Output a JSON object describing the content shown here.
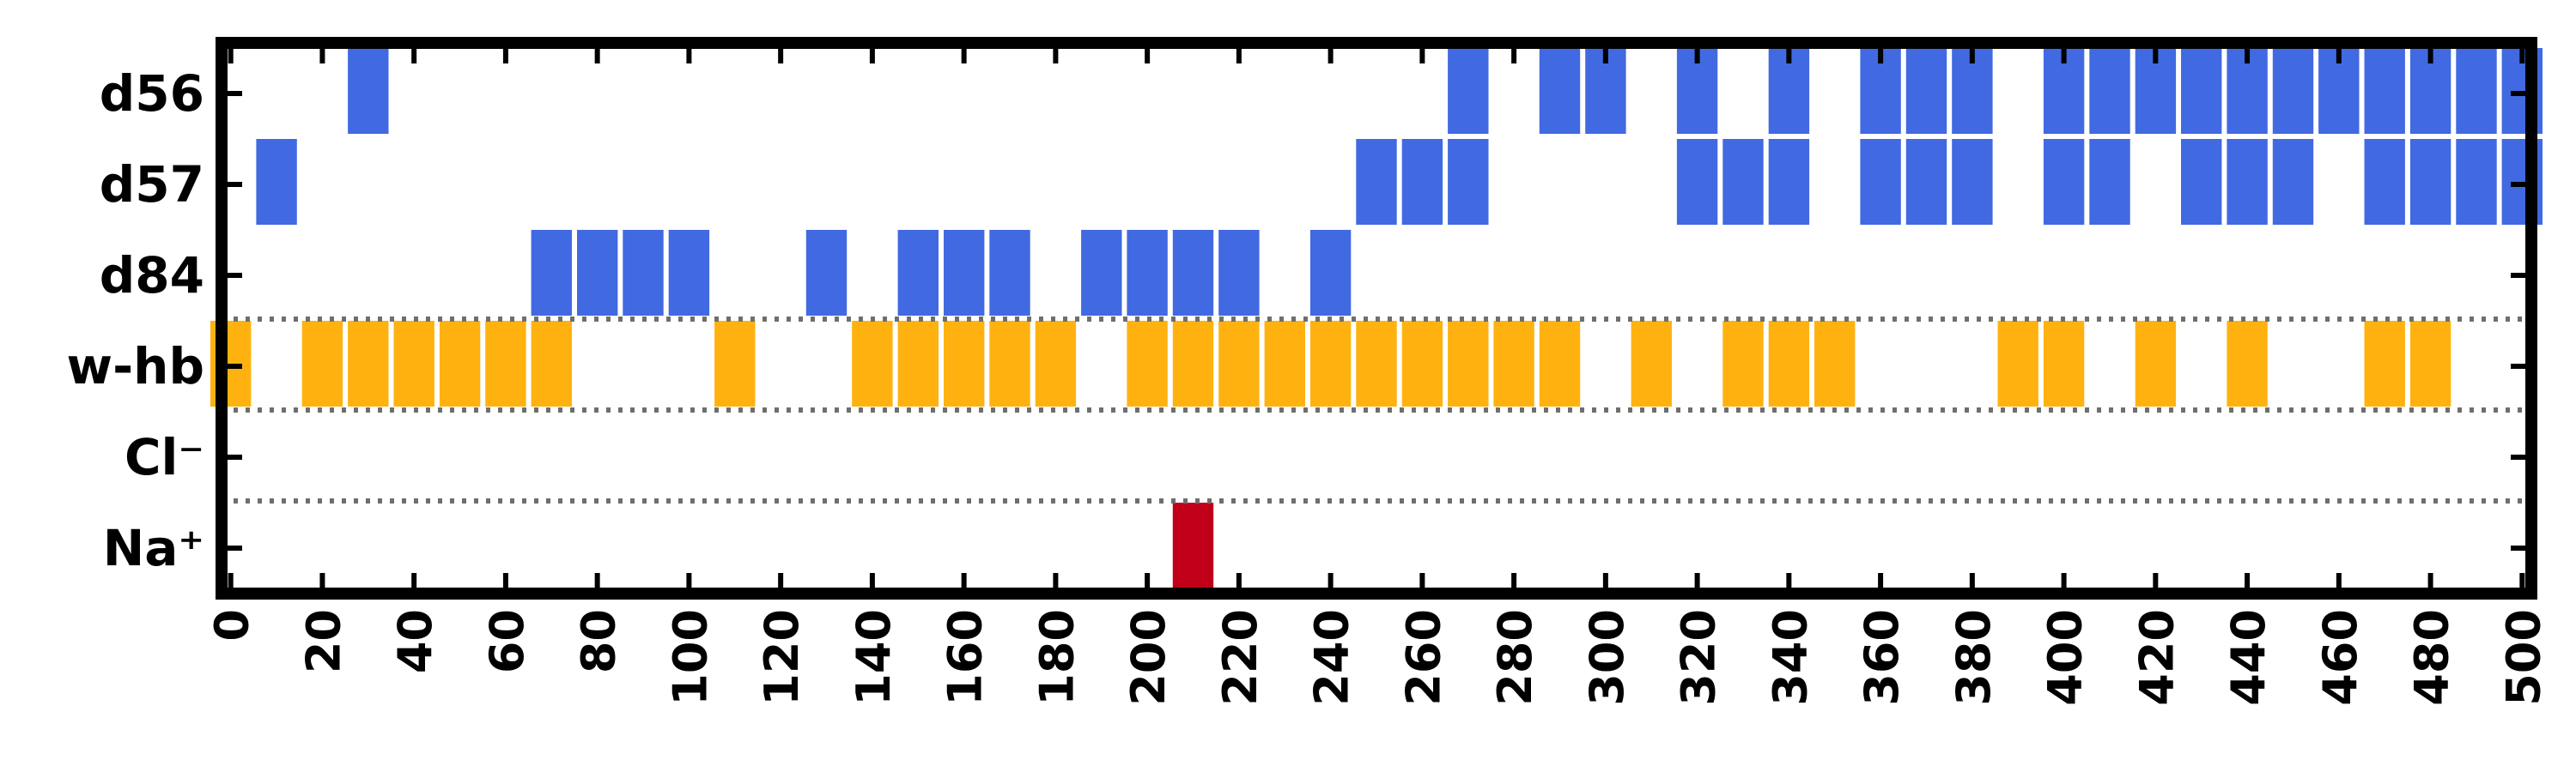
{
  "chart_data": {
    "type": "event-raster",
    "xlim": [
      -2,
      502
    ],
    "bin_width": 10,
    "x_ticks": [
      0,
      20,
      40,
      60,
      80,
      100,
      120,
      140,
      160,
      180,
      200,
      220,
      240,
      260,
      280,
      300,
      320,
      340,
      360,
      380,
      400,
      420,
      440,
      460,
      480,
      500
    ],
    "rows": [
      {
        "label": "d56",
        "color": "#4169e1",
        "events": [
          30,
          270,
          290,
          300,
          320,
          340,
          360,
          370,
          380,
          400,
          410,
          420,
          430,
          440,
          450,
          460,
          470,
          480,
          490,
          500
        ]
      },
      {
        "label": "d57",
        "color": "#4169e1",
        "events": [
          10,
          250,
          260,
          270,
          320,
          330,
          340,
          360,
          370,
          380,
          400,
          410,
          430,
          440,
          450,
          470,
          480,
          490,
          500
        ]
      },
      {
        "label": "d84",
        "color": "#4169e1",
        "events": [
          70,
          80,
          90,
          100,
          130,
          150,
          160,
          170,
          190,
          200,
          210,
          220,
          240
        ]
      },
      {
        "label": "w-hb",
        "color": "#ffb20f",
        "events": [
          0,
          20,
          30,
          40,
          50,
          60,
          70,
          110,
          140,
          150,
          160,
          170,
          180,
          200,
          210,
          220,
          230,
          240,
          250,
          260,
          270,
          280,
          290,
          310,
          330,
          340,
          350,
          390,
          400,
          420,
          440,
          470,
          480
        ]
      },
      {
        "label": "Cl⁻",
        "color": "#4169e1",
        "events": []
      },
      {
        "label": "Na⁺",
        "color": "#c00018",
        "events": [
          210
        ]
      }
    ],
    "separators_after_rows": [
      "d84",
      "w-hb",
      "Cl⁻"
    ]
  }
}
